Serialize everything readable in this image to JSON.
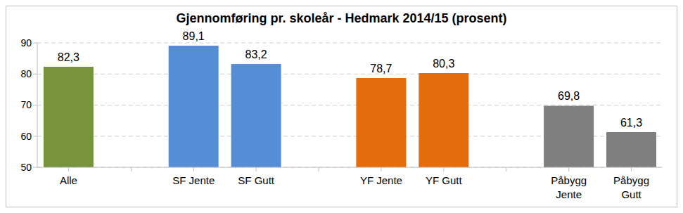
{
  "chart_data": {
    "type": "bar",
    "title": "Gjennomføring pr. skoleår - Hedmark 2014/15 (prosent)",
    "categories": [
      "Alle",
      null,
      "SF Jente",
      "SF Gutt",
      null,
      "YF Jente",
      "YF Gutt",
      null,
      "Påbygg Jente",
      "Påbygg Gutt"
    ],
    "values": [
      82.3,
      null,
      89.1,
      83.2,
      null,
      78.7,
      80.3,
      null,
      69.8,
      61.3
    ],
    "value_labels": [
      "82,3",
      null,
      "89,1",
      "83,2",
      null,
      "78,7",
      "80,3",
      null,
      "69,8",
      "61,3"
    ],
    "colors": [
      "#77933c",
      null,
      "#558ed5",
      "#558ed5",
      null,
      "#e46c0a",
      "#e46c0a",
      null,
      "#7f7f7f",
      "#7f7f7f"
    ],
    "ylim": [
      50,
      90
    ],
    "yticks": [
      50,
      60,
      70,
      80,
      90
    ],
    "grid": true,
    "data_labels": true
  }
}
